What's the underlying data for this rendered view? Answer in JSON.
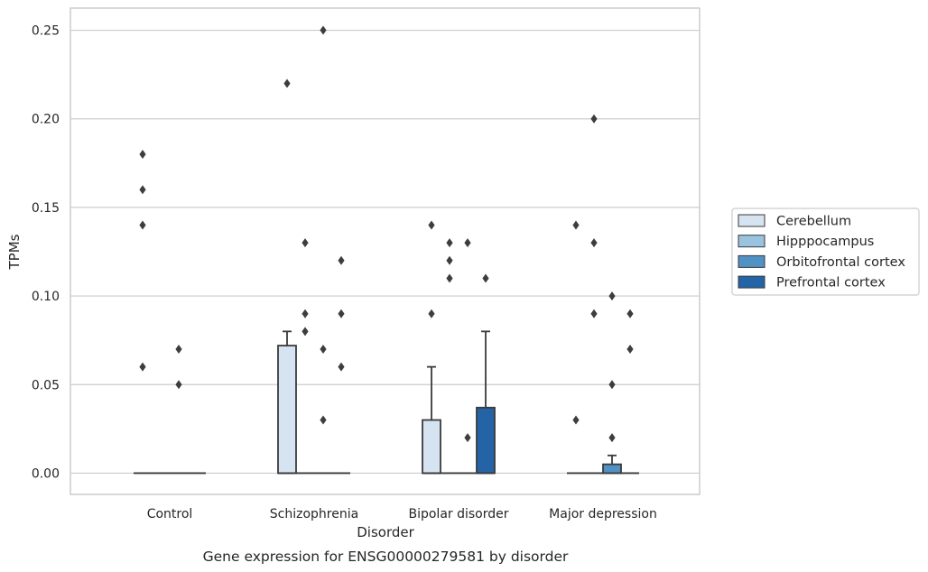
{
  "chart_data": {
    "type": "box",
    "caption": "Gene expression for ENSG00000279581 by disorder",
    "xlabel": "Disorder",
    "ylabel": "TPMs",
    "ylim": [
      -0.012,
      0.2625
    ],
    "yticks": [
      0.0,
      0.05,
      0.1,
      0.15,
      0.2,
      0.25
    ],
    "ytick_labels": [
      "0.00",
      "0.05",
      "0.10",
      "0.15",
      "0.20",
      "0.25"
    ],
    "grid": "horizontal",
    "legend_position": "right",
    "categories": [
      "Control",
      "Schizophrenia",
      "Bipolar disorder",
      "Major depression"
    ],
    "series": [
      {
        "name": "Cerebellum",
        "color": "#d6e4f2",
        "boxes": [
          {
            "q1": 0,
            "median": 0,
            "q3": 0,
            "whisker_low": 0,
            "whisker_high": 0,
            "outliers": [
              0.06,
              0.14,
              0.16,
              0.18
            ]
          },
          {
            "q1": 0,
            "median": 0,
            "q3": 0.072,
            "whisker_low": 0,
            "whisker_high": 0.08,
            "outliers": [
              0.22
            ]
          },
          {
            "q1": 0,
            "median": 0,
            "q3": 0.03,
            "whisker_low": 0,
            "whisker_high": 0.06,
            "outliers": [
              0.09,
              0.14
            ]
          },
          {
            "q1": 0,
            "median": 0,
            "q3": 0,
            "whisker_low": 0,
            "whisker_high": 0,
            "outliers": [
              0.03,
              0.14
            ]
          }
        ]
      },
      {
        "name": "Hipppocampus",
        "color": "#9ac3df",
        "boxes": [
          {
            "q1": 0,
            "median": 0,
            "q3": 0,
            "whisker_low": 0,
            "whisker_high": 0,
            "outliers": []
          },
          {
            "q1": 0,
            "median": 0,
            "q3": 0,
            "whisker_low": 0,
            "whisker_high": 0,
            "outliers": [
              0.08,
              0.09,
              0.13
            ]
          },
          {
            "q1": 0,
            "median": 0,
            "q3": 0,
            "whisker_low": 0,
            "whisker_high": 0,
            "outliers": [
              0.11,
              0.12,
              0.13
            ]
          },
          {
            "q1": 0,
            "median": 0,
            "q3": 0,
            "whisker_low": 0,
            "whisker_high": 0,
            "outliers": [
              0.09,
              0.13,
              0.2
            ]
          }
        ]
      },
      {
        "name": "Orbitofrontal cortex",
        "color": "#5192c5",
        "boxes": [
          {
            "q1": 0,
            "median": 0,
            "q3": 0,
            "whisker_low": 0,
            "whisker_high": 0,
            "outliers": [
              0.05,
              0.07
            ]
          },
          {
            "q1": 0,
            "median": 0,
            "q3": 0,
            "whisker_low": 0,
            "whisker_high": 0,
            "outliers": [
              0.03,
              0.07,
              0.25
            ]
          },
          {
            "q1": 0,
            "median": 0,
            "q3": 0,
            "whisker_low": 0,
            "whisker_high": 0,
            "outliers": [
              0.02,
              0.13
            ]
          },
          {
            "q1": 0,
            "median": 0,
            "q3": 0.005,
            "whisker_low": 0,
            "whisker_high": 0.01,
            "outliers": [
              0.02,
              0.05,
              0.1
            ]
          }
        ]
      },
      {
        "name": "Prefrontal cortex",
        "color": "#2464a6",
        "boxes": [
          {
            "q1": 0,
            "median": 0,
            "q3": 0,
            "whisker_low": 0,
            "whisker_high": 0,
            "outliers": []
          },
          {
            "q1": 0,
            "median": 0,
            "q3": 0,
            "whisker_low": 0,
            "whisker_high": 0,
            "outliers": [
              0.06,
              0.09,
              0.12
            ]
          },
          {
            "q1": 0,
            "median": 0,
            "q3": 0.037,
            "whisker_low": 0,
            "whisker_high": 0.08,
            "outliers": [
              0.11
            ]
          },
          {
            "q1": 0,
            "median": 0,
            "q3": 0,
            "whisker_low": 0,
            "whisker_high": 0,
            "outliers": [
              0.07,
              0.09
            ]
          }
        ]
      }
    ]
  }
}
